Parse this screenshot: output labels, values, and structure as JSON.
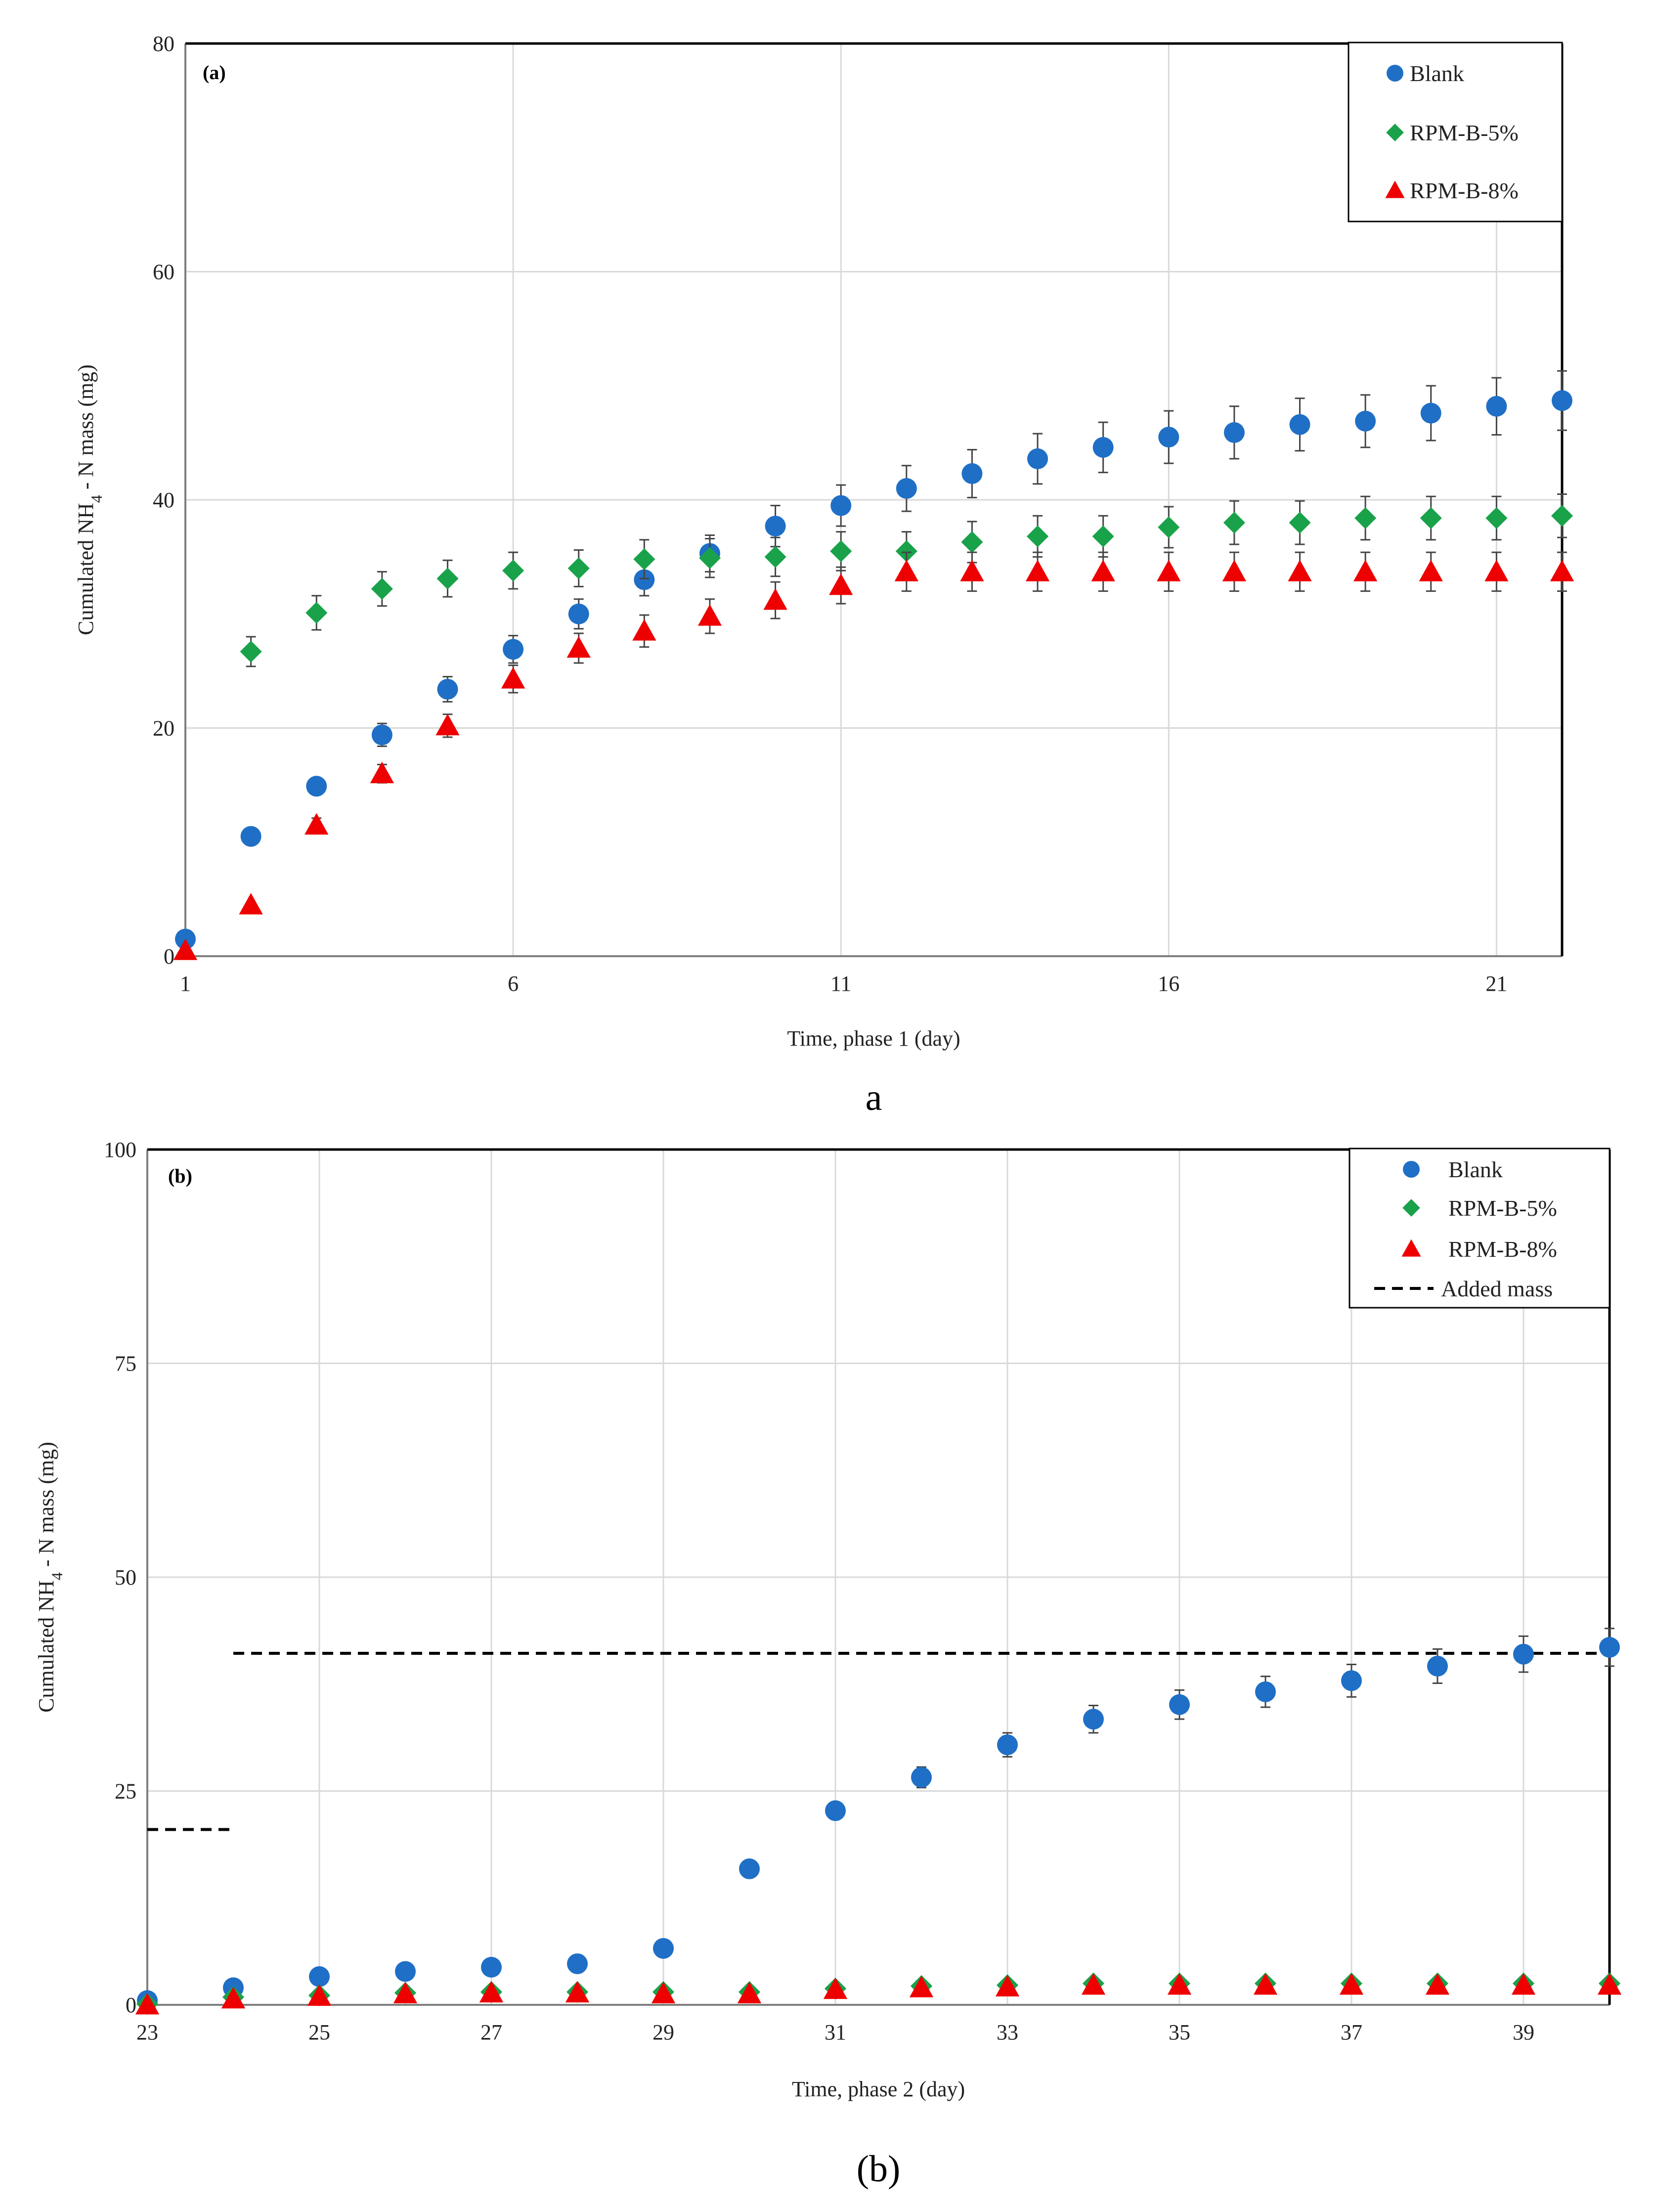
{
  "chart_data": [
    {
      "type": "scatter",
      "panel_tag": "(a)",
      "caption": "a",
      "xlabel": "Time,  phase 1 (day)",
      "ylabel_main": "Cumulated  NH",
      "ylabel_sub": "4",
      "ylabel_tail": " - N mass (mg)",
      "xlim": [
        1,
        22
      ],
      "ylim": [
        0,
        80
      ],
      "xticks": [
        1,
        6,
        11,
        16,
        21
      ],
      "yticks": [
        0,
        20,
        40,
        60,
        80
      ],
      "grid": true,
      "legend_position": "top-right",
      "x": [
        1,
        2,
        3,
        4,
        5,
        6,
        7,
        8,
        9,
        10,
        11,
        12,
        13,
        14,
        15,
        16,
        17,
        18,
        19,
        20,
        21,
        22
      ],
      "series": [
        {
          "name": "Blank",
          "marker": "circle",
          "color": "#1f6fc6",
          "values": [
            1.5,
            10.5,
            14.9,
            19.4,
            23.4,
            26.9,
            30.0,
            33.0,
            35.3,
            37.7,
            39.5,
            41.0,
            42.3,
            43.6,
            44.6,
            45.5,
            45.9,
            46.6,
            46.9,
            47.6,
            48.2,
            48.7
          ],
          "errors": [
            0.0,
            0.0,
            0.7,
            1.0,
            1.1,
            1.2,
            1.3,
            1.4,
            1.6,
            1.8,
            1.8,
            2.0,
            2.1,
            2.2,
            2.2,
            2.3,
            2.3,
            2.3,
            2.3,
            2.4,
            2.5,
            2.6
          ]
        },
        {
          "name": "RPM-B-5%",
          "marker": "diamond",
          "color": "#19a24a",
          "values": [
            null,
            26.7,
            30.1,
            32.2,
            33.1,
            33.8,
            34.0,
            34.8,
            34.9,
            35.0,
            35.5,
            35.5,
            36.3,
            36.8,
            36.8,
            37.6,
            38.0,
            38.0,
            38.4,
            38.4,
            38.4,
            38.6
          ],
          "errors": [
            0,
            1.3,
            1.5,
            1.5,
            1.6,
            1.6,
            1.6,
            1.7,
            1.7,
            1.7,
            1.7,
            1.7,
            1.8,
            1.8,
            1.8,
            1.8,
            1.9,
            1.9,
            1.9,
            1.9,
            1.9,
            1.9
          ]
        },
        {
          "name": "RPM-B-8%",
          "marker": "triangle",
          "color": "#ee0000",
          "values": [
            0.5,
            4.5,
            11.5,
            16.0,
            20.2,
            24.3,
            27.0,
            28.5,
            29.8,
            31.2,
            32.5,
            33.7,
            33.7,
            33.7,
            33.7,
            33.7,
            33.7,
            33.7,
            33.7,
            33.7,
            33.7,
            33.7
          ],
          "errors": [
            0,
            0,
            0.6,
            0.8,
            1.0,
            1.2,
            1.3,
            1.4,
            1.5,
            1.6,
            1.6,
            1.7,
            1.7,
            1.7,
            1.7,
            1.7,
            1.7,
            1.7,
            1.7,
            1.7,
            1.7,
            1.7
          ]
        }
      ]
    },
    {
      "type": "scatter",
      "panel_tag": "(b)",
      "caption": "(b)",
      "xlabel": "Time,  phase 2 (day)",
      "ylabel_main": "Cumulated  NH",
      "ylabel_sub": "4",
      "ylabel_tail": " - N mass (mg)",
      "xlim": [
        23,
        40
      ],
      "ylim": [
        0,
        100
      ],
      "xticks": [
        23,
        25,
        27,
        29,
        31,
        33,
        35,
        37,
        39
      ],
      "yticks": [
        0,
        25,
        50,
        75,
        100
      ],
      "grid": true,
      "legend_position": "top-right",
      "x": [
        23,
        24,
        25,
        26,
        27,
        28,
        29,
        30,
        31,
        32,
        33,
        34,
        35,
        36,
        37,
        38,
        39,
        40
      ],
      "series": [
        {
          "name": "Blank",
          "marker": "circle",
          "color": "#1f6fc6",
          "values": [
            0.5,
            2.0,
            3.3,
            3.9,
            4.4,
            4.8,
            6.6,
            15.9,
            22.7,
            26.6,
            30.4,
            33.4,
            35.1,
            36.6,
            37.9,
            39.6,
            41.0,
            41.8
          ],
          "errors": [
            0,
            0,
            0,
            0,
            0,
            0,
            0,
            0,
            0.8,
            1.2,
            1.4,
            1.6,
            1.7,
            1.8,
            1.9,
            2.0,
            2.1,
            2.2
          ]
        },
        {
          "name": "RPM-B-5%",
          "marker": "diamond",
          "color": "#19a24a",
          "values": [
            0.1,
            0.9,
            1.1,
            1.4,
            1.5,
            1.5,
            1.5,
            1.5,
            1.9,
            2.2,
            2.3,
            2.5,
            2.5,
            2.5,
            2.5,
            2.5,
            2.5,
            2.5
          ],
          "errors": [
            0,
            0,
            0,
            0,
            0,
            0,
            0,
            0,
            0,
            0,
            0,
            0,
            0,
            0,
            0,
            0,
            0,
            0
          ]
        },
        {
          "name": "RPM-B-8%",
          "marker": "triangle",
          "color": "#ee0000",
          "values": [
            0.0,
            0.7,
            1.0,
            1.3,
            1.4,
            1.4,
            1.3,
            1.3,
            1.8,
            2.0,
            2.1,
            2.3,
            2.3,
            2.3,
            2.3,
            2.3,
            2.3,
            2.3
          ],
          "errors": [
            0,
            0,
            0,
            0,
            0,
            0,
            0,
            0,
            0,
            0,
            0,
            0,
            0,
            0,
            0,
            0,
            0,
            0
          ]
        }
      ],
      "added_mass": {
        "name": "Added mass",
        "segments": [
          {
            "x": [
              23,
              24
            ],
            "value": 20.5
          },
          {
            "x": [
              24,
              40
            ],
            "value": 41.1
          }
        ]
      }
    }
  ]
}
